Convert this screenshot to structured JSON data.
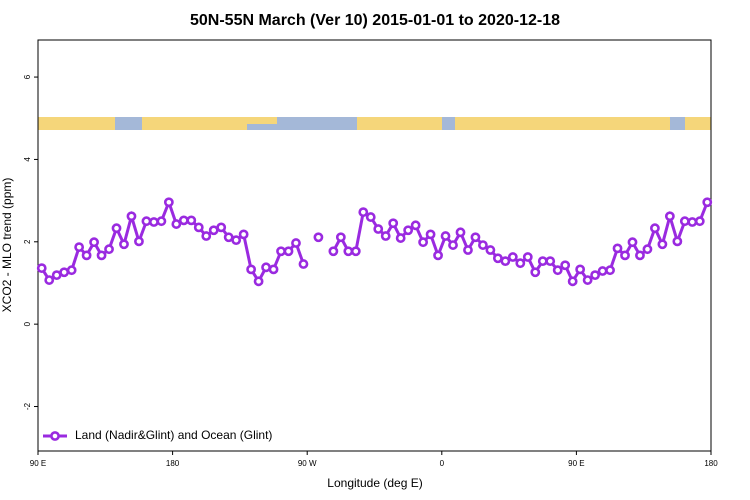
{
  "chart_data": {
    "type": "line",
    "title": "50N-55N March (Ver 10)   2015-01-01 to 2020-12-18",
    "xlabel": "Longitude (deg E)",
    "ylabel": "XCO2 - MLO trend (ppm)",
    "x": [
      92.5,
      97.5,
      102.5,
      107.5,
      112.5,
      117.5,
      122.5,
      127.5,
      132.5,
      137.5,
      142.5,
      147.5,
      152.5,
      157.5,
      162.5,
      167.5,
      172.5,
      177.5,
      182.5,
      187.5,
      192.5,
      197.5,
      202.5,
      207.5,
      212.5,
      217.5,
      222.5,
      227.5,
      232.5,
      237.5,
      242.5,
      247.5,
      252.5,
      257.5,
      262.5,
      267.5,
      272.5,
      277.5,
      282.5,
      287.5,
      292.5,
      297.5,
      302.5,
      307.5,
      312.5,
      317.5,
      322.5,
      327.5,
      332.5,
      337.5,
      342.5,
      347.5,
      352.5,
      357.5,
      362.5,
      367.5,
      372.5,
      377.5,
      382.5,
      387.5,
      392.5,
      397.5,
      402.5,
      407.5,
      412.5,
      417.5,
      422.5,
      427.5,
      432.5,
      437.5,
      442.5,
      447.5,
      452.5,
      457.5,
      462.5,
      467.5,
      472.5,
      477.5,
      482.5,
      487.5,
      492.5,
      497.5,
      502.5,
      507.5,
      512.5,
      517.5,
      522.5,
      527.5,
      532.5,
      537.5
    ],
    "series": [
      {
        "name": "Land (Nadir&Glint) and Ocean (Glint)",
        "color": "#9a2ae0",
        "values": [
          1.36,
          1.07,
          1.19,
          1.26,
          1.31,
          1.87,
          1.67,
          1.99,
          1.67,
          1.82,
          2.33,
          1.94,
          2.62,
          2.01,
          2.5,
          2.48,
          2.5,
          2.96,
          2.43,
          2.52,
          2.52,
          2.35,
          2.14,
          2.28,
          2.35,
          2.11,
          2.04,
          2.18,
          1.33,
          1.04,
          1.38,
          1.33,
          1.77,
          1.77,
          1.97,
          1.46,
          null,
          2.11,
          null,
          1.77,
          2.11,
          1.77,
          1.77,
          2.72,
          2.6,
          2.31,
          2.14,
          2.45,
          2.09,
          2.28,
          2.4,
          1.99,
          2.18,
          1.67,
          2.14,
          1.92,
          2.23,
          1.8,
          2.11,
          1.92,
          1.8,
          1.6,
          1.53,
          1.63,
          1.48,
          1.63,
          1.26,
          1.53,
          1.53,
          1.31,
          1.43,
          1.04,
          1.33,
          1.07,
          1.19,
          1.29,
          1.31,
          1.84,
          1.67,
          1.99,
          1.67,
          1.82,
          2.33,
          1.94,
          2.62,
          2.01,
          2.5,
          2.48,
          2.5,
          2.96
        ]
      }
    ],
    "xlim": [
      90,
      540
    ],
    "xticks": [
      {
        "value": 90,
        "label": "90 E"
      },
      180,
      {
        "value": 270,
        "label": "90 W"
      },
      {
        "value": 360,
        "label": "0"
      },
      {
        "value": 450,
        "label": "90 E"
      },
      {
        "value": 540,
        "label": "180"
      }
    ],
    "ylim": [
      -3.08,
      6.9
    ],
    "yticks": [
      -2,
      0,
      2,
      4,
      6
    ],
    "legend": "bottom-left"
  }
}
